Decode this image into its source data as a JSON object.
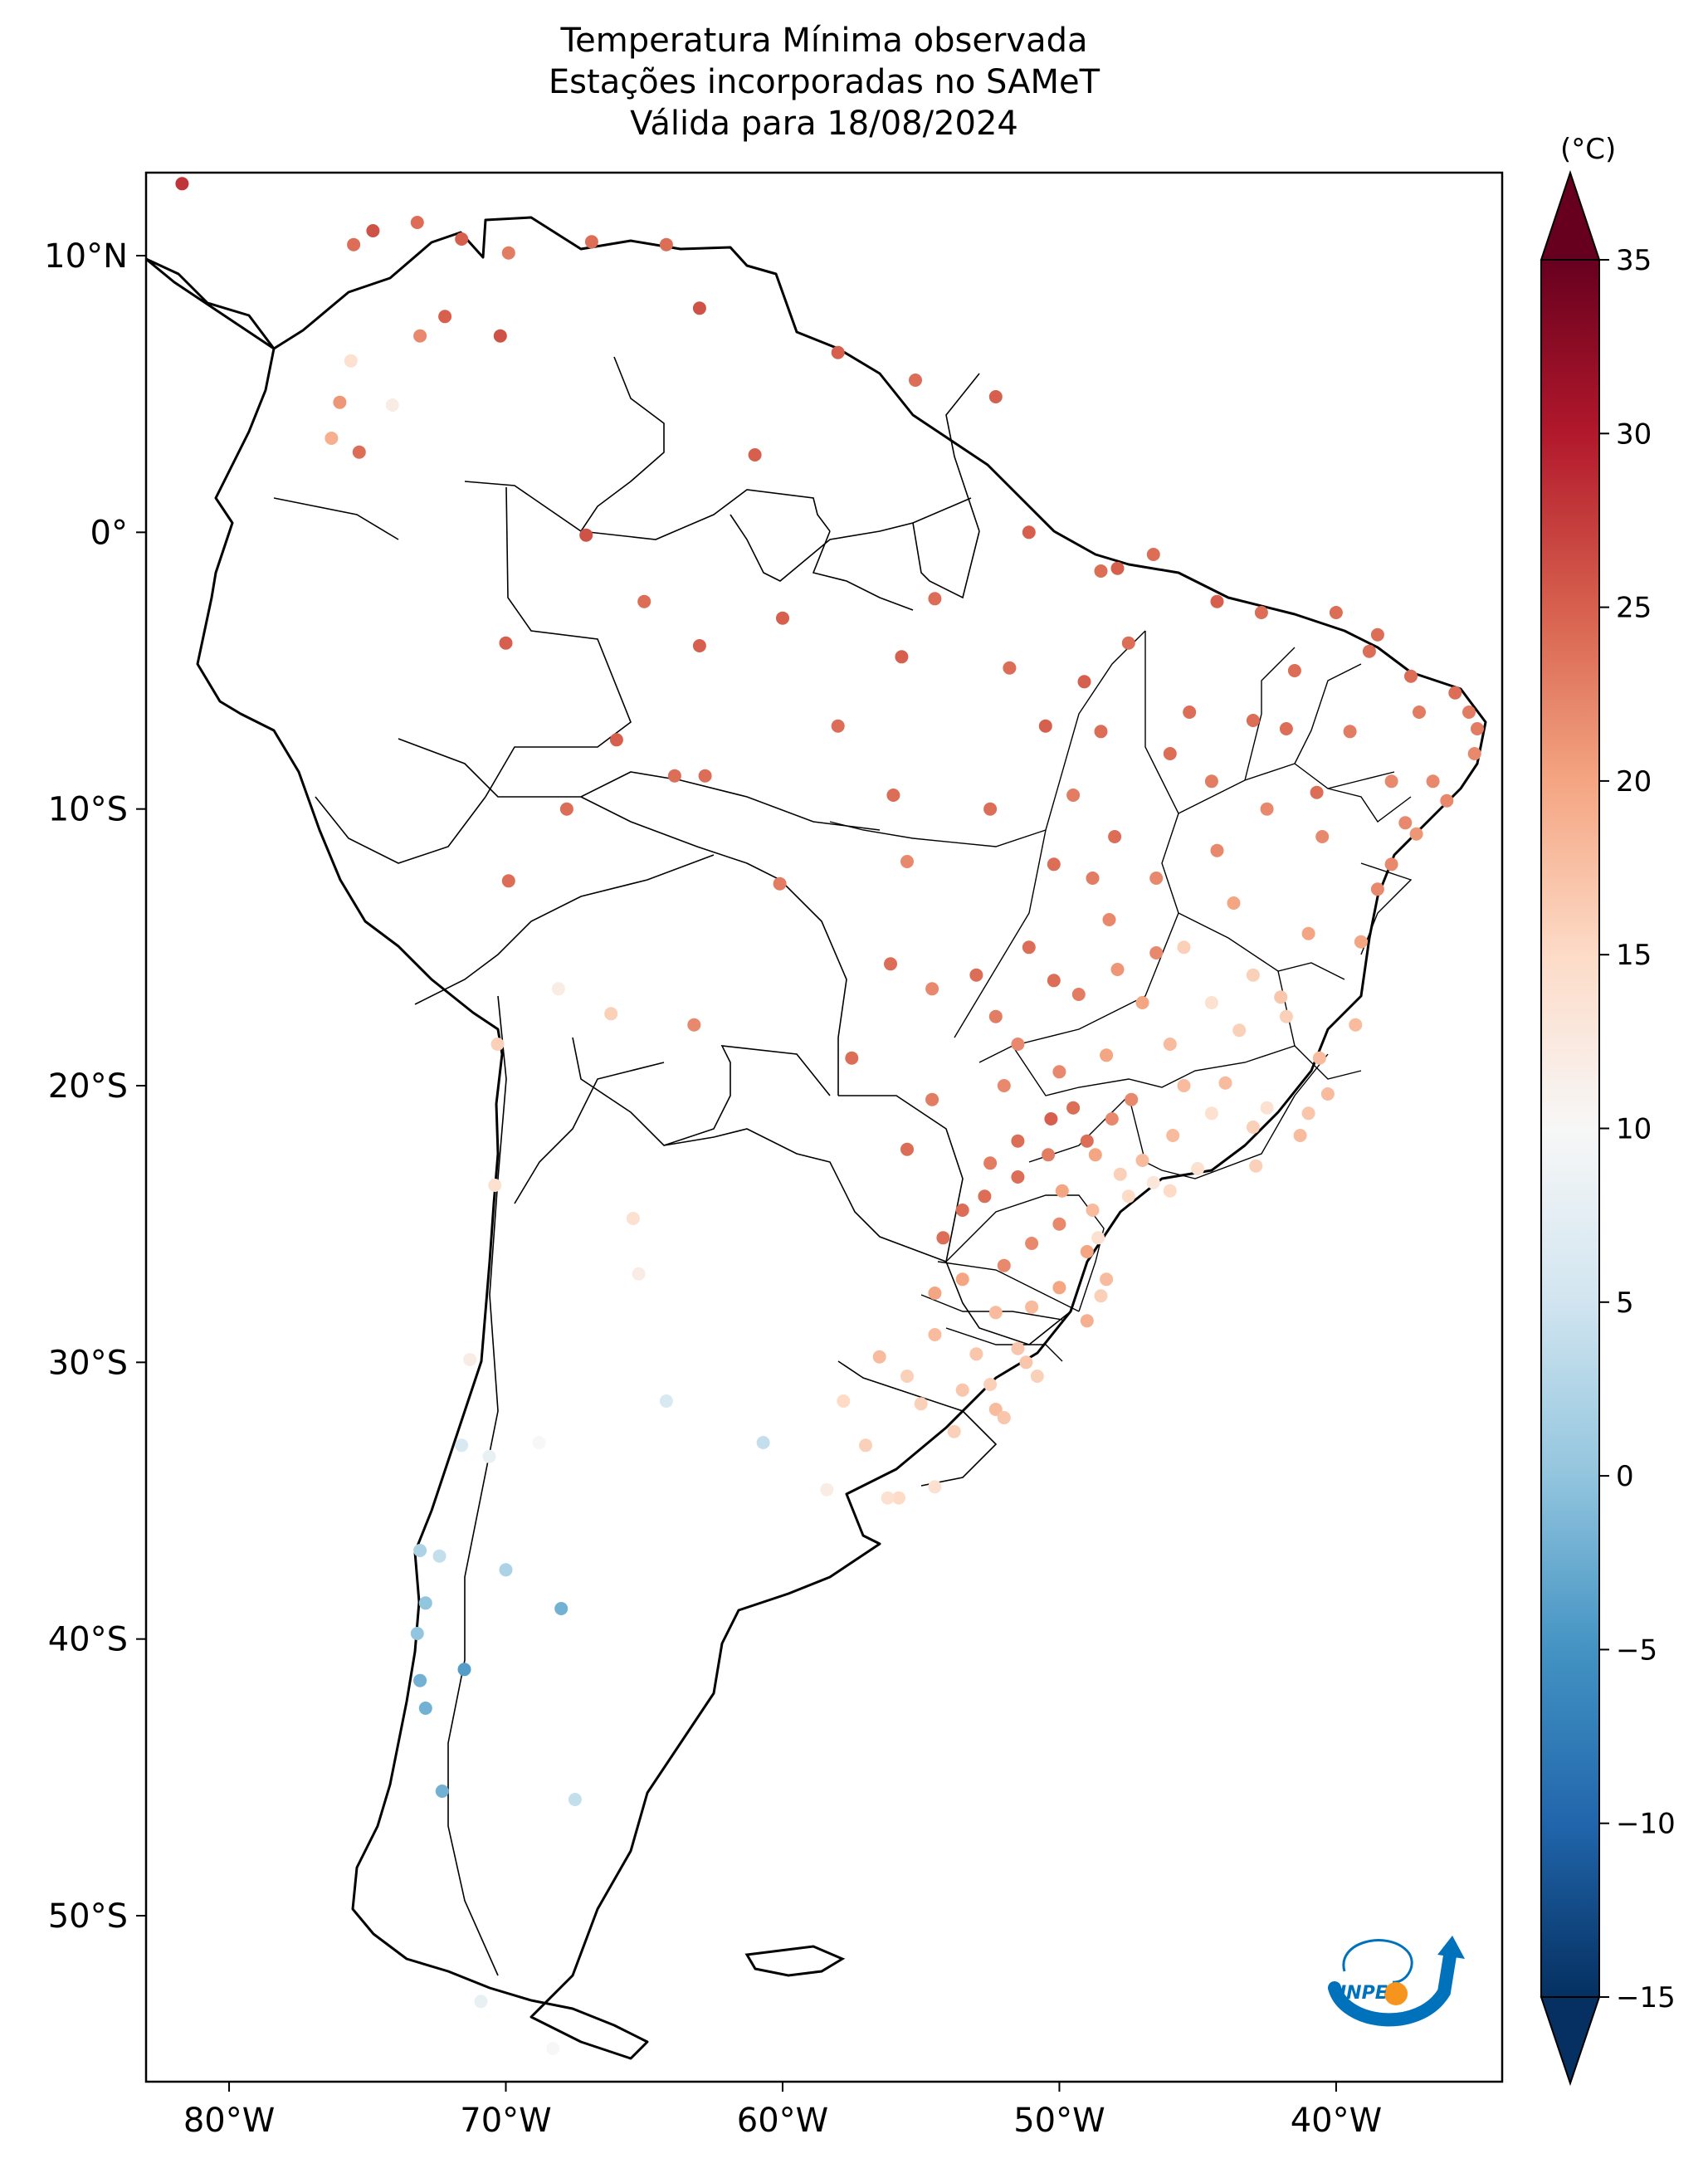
{
  "title": {
    "line1": "Temperatura Mínima observada",
    "line2": "Estações incorporadas no SAMeT",
    "line3": "Válida para 18/08/2024"
  },
  "map": {
    "lon_range": [
      -83,
      -34
    ],
    "lat_range": [
      -56,
      13
    ],
    "x_ticks": [
      {
        "value": -80,
        "label": "80°W"
      },
      {
        "value": -70,
        "label": "70°W"
      },
      {
        "value": -60,
        "label": "60°W"
      },
      {
        "value": -50,
        "label": "50°W"
      },
      {
        "value": -40,
        "label": "40°W"
      }
    ],
    "y_ticks": [
      {
        "value": 10,
        "label": "10°N"
      },
      {
        "value": 0,
        "label": "0°"
      },
      {
        "value": -10,
        "label": "10°S"
      },
      {
        "value": -20,
        "label": "20°S"
      },
      {
        "value": -30,
        "label": "30°S"
      },
      {
        "value": -40,
        "label": "40°S"
      },
      {
        "value": -50,
        "label": "50°S"
      }
    ]
  },
  "colorbar": {
    "unit": "(°C)",
    "min": -15,
    "max": 35,
    "extend": "both",
    "colormap": "RdBu_r",
    "ticks": [
      {
        "value": 35,
        "label": "35"
      },
      {
        "value": 30,
        "label": "30"
      },
      {
        "value": 25,
        "label": "25"
      },
      {
        "value": 20,
        "label": "20"
      },
      {
        "value": 15,
        "label": "15"
      },
      {
        "value": 10,
        "label": "10"
      },
      {
        "value": 5,
        "label": "5"
      },
      {
        "value": 0,
        "label": "0"
      },
      {
        "value": -5,
        "label": "−5"
      },
      {
        "value": -10,
        "label": "−10"
      },
      {
        "value": -15,
        "label": "−15"
      }
    ]
  },
  "logo": {
    "text": "INPE",
    "colors": {
      "blue": "#0072bc",
      "orange": "#f7941d"
    }
  },
  "stations": [
    [
      -81.7,
      12.6,
      28
    ],
    [
      -75.5,
      10.4,
      24
    ],
    [
      -74.8,
      10.9,
      26
    ],
    [
      -73.2,
      11.2,
      24
    ],
    [
      -71.6,
      10.6,
      25
    ],
    [
      -69.9,
      10.1,
      23
    ],
    [
      -66.9,
      10.5,
      24
    ],
    [
      -64.2,
      10.4,
      24
    ],
    [
      -63.0,
      8.1,
      26
    ],
    [
      -72.2,
      7.8,
      25
    ],
    [
      -70.2,
      7.1,
      26
    ],
    [
      -73.1,
      7.1,
      22
    ],
    [
      -75.6,
      6.2,
      14
    ],
    [
      -76.0,
      4.7,
      21
    ],
    [
      -74.1,
      4.6,
      12
    ],
    [
      -76.3,
      3.4,
      19
    ],
    [
      -75.3,
      2.9,
      24
    ],
    [
      -61.0,
      2.8,
      25
    ],
    [
      -58.0,
      6.5,
      25
    ],
    [
      -55.2,
      5.5,
      24
    ],
    [
      -52.3,
      4.9,
      25
    ],
    [
      -51.1,
      0.0,
      25
    ],
    [
      -48.5,
      -1.4,
      24
    ],
    [
      -47.9,
      -1.3,
      25
    ],
    [
      -46.6,
      -0.8,
      24
    ],
    [
      -44.3,
      -2.5,
      25
    ],
    [
      -42.7,
      -2.9,
      24
    ],
    [
      -40.0,
      -2.9,
      24
    ],
    [
      -38.5,
      -3.7,
      24
    ],
    [
      -37.3,
      -5.2,
      24
    ],
    [
      -35.7,
      -5.8,
      24
    ],
    [
      -35.2,
      -6.5,
      23
    ],
    [
      -34.9,
      -7.1,
      23
    ],
    [
      -35.0,
      -8.0,
      22
    ],
    [
      -36.0,
      -9.7,
      22
    ],
    [
      -37.1,
      -10.9,
      21
    ],
    [
      -38.5,
      -12.9,
      22
    ],
    [
      -39.1,
      -14.8,
      20
    ],
    [
      -39.3,
      -17.8,
      18
    ],
    [
      -40.3,
      -20.3,
      18
    ],
    [
      -41.3,
      -21.8,
      18
    ],
    [
      -42.9,
      -22.9,
      16
    ],
    [
      -45.0,
      -23.0,
      14
    ],
    [
      -46.6,
      -23.5,
      13
    ],
    [
      -48.6,
      -25.5,
      14
    ],
    [
      -48.5,
      -27.6,
      16
    ],
    [
      -51.2,
      -30.0,
      17
    ],
    [
      -52.3,
      -31.7,
      18
    ],
    [
      -55.8,
      -34.9,
      15
    ],
    [
      -56.2,
      -34.9,
      14
    ],
    [
      -58.4,
      -34.6,
      12
    ],
    [
      -60.7,
      -32.9,
      4
    ],
    [
      -64.2,
      -31.4,
      6
    ],
    [
      -65.4,
      -24.8,
      14
    ],
    [
      -65.2,
      -26.8,
      12
    ],
    [
      -68.8,
      -32.9,
      10
    ],
    [
      -70.6,
      -33.4,
      8
    ],
    [
      -71.6,
      -33.0,
      6
    ],
    [
      -72.4,
      -37.0,
      4
    ],
    [
      -73.1,
      -36.8,
      2
    ],
    [
      -72.9,
      -38.7,
      0
    ],
    [
      -73.2,
      -39.8,
      0
    ],
    [
      -73.1,
      -41.5,
      -2
    ],
    [
      -72.9,
      -42.5,
      -2
    ],
    [
      -72.3,
      -45.5,
      -2
    ],
    [
      -71.5,
      -41.1,
      -4
    ],
    [
      -68.0,
      -38.9,
      -2
    ],
    [
      -70.0,
      -37.5,
      2
    ],
    [
      -67.5,
      -45.8,
      4
    ],
    [
      -70.9,
      -53.1,
      8
    ],
    [
      -68.3,
      -54.8,
      10
    ],
    [
      -71.3,
      -29.9,
      12
    ],
    [
      -70.4,
      -23.6,
      14
    ],
    [
      -70.3,
      -18.5,
      16
    ],
    [
      -68.1,
      -16.5,
      12
    ],
    [
      -66.2,
      -17.4,
      16
    ],
    [
      -63.2,
      -17.8,
      22
    ],
    [
      -69.9,
      -12.6,
      24
    ],
    [
      -67.8,
      -10.0,
      24
    ],
    [
      -63.9,
      -8.8,
      24
    ],
    [
      -60.1,
      -12.7,
      23
    ],
    [
      -62.8,
      -8.8,
      24
    ],
    [
      -60.0,
      -3.1,
      25
    ],
    [
      -63.0,
      -4.1,
      25
    ],
    [
      -65.0,
      -2.5,
      24
    ],
    [
      -67.1,
      -0.1,
      26
    ],
    [
      -70.0,
      -4.0,
      25
    ],
    [
      -66.0,
      -7.5,
      25
    ],
    [
      -58.0,
      -7.0,
      24
    ],
    [
      -55.7,
      -4.5,
      25
    ],
    [
      -54.5,
      -2.4,
      24
    ],
    [
      -56.0,
      -9.5,
      24
    ],
    [
      -55.5,
      -11.9,
      22
    ],
    [
      -56.1,
      -15.6,
      24
    ],
    [
      -54.6,
      -16.5,
      22
    ],
    [
      -53.0,
      -16.0,
      24
    ],
    [
      -51.1,
      -15.0,
      24
    ],
    [
      -49.3,
      -16.7,
      23
    ],
    [
      -47.9,
      -15.8,
      21
    ],
    [
      -46.5,
      -15.2,
      22
    ],
    [
      -48.3,
      -18.9,
      20
    ],
    [
      -50.0,
      -19.5,
      22
    ],
    [
      -52.0,
      -20.0,
      22
    ],
    [
      -54.6,
      -20.5,
      23
    ],
    [
      -55.5,
      -22.3,
      24
    ],
    [
      -57.5,
      -19.0,
      24
    ],
    [
      -50.3,
      -21.2,
      25
    ],
    [
      -49.0,
      -22.0,
      24
    ],
    [
      -47.4,
      -20.5,
      22
    ],
    [
      -45.9,
      -21.8,
      18
    ],
    [
      -44.0,
      -19.9,
      18
    ],
    [
      -43.5,
      -18.0,
      16
    ],
    [
      -42.0,
      -16.8,
      17
    ],
    [
      -44.5,
      -17.0,
      14
    ],
    [
      -45.5,
      -15.0,
      16
    ],
    [
      -43.7,
      -13.4,
      20
    ],
    [
      -41.0,
      -14.5,
      20
    ],
    [
      -40.5,
      -11.0,
      22
    ],
    [
      -42.5,
      -10.0,
      22
    ],
    [
      -44.5,
      -9.0,
      23
    ],
    [
      -46.0,
      -8.0,
      24
    ],
    [
      -48.5,
      -7.2,
      24
    ],
    [
      -49.5,
      -9.5,
      23
    ],
    [
      -48.0,
      -11.0,
      24
    ],
    [
      -46.5,
      -12.5,
      22
    ],
    [
      -44.3,
      -11.5,
      22
    ],
    [
      -45.3,
      -6.5,
      24
    ],
    [
      -43.0,
      -6.8,
      24
    ],
    [
      -41.5,
      -5.0,
      24
    ],
    [
      -39.5,
      -7.2,
      23
    ],
    [
      -38.0,
      -9.0,
      22
    ],
    [
      -37.0,
      -6.5,
      23
    ],
    [
      -38.8,
      -4.3,
      24
    ],
    [
      -40.7,
      -9.4,
      24
    ],
    [
      -41.8,
      -7.1,
      24
    ],
    [
      -47.5,
      -4.0,
      24
    ],
    [
      -49.1,
      -5.4,
      25
    ],
    [
      -50.5,
      -7.0,
      25
    ],
    [
      -51.8,
      -4.9,
      24
    ],
    [
      -52.5,
      -10.0,
      24
    ],
    [
      -50.2,
      -12.0,
      24
    ],
    [
      -50.2,
      -16.2,
      24
    ],
    [
      -52.3,
      -17.5,
      23
    ],
    [
      -51.5,
      -18.5,
      22
    ],
    [
      -49.5,
      -20.8,
      24
    ],
    [
      -48.1,
      -21.2,
      22
    ],
    [
      -47.0,
      -22.7,
      18
    ],
    [
      -46.0,
      -23.8,
      15
    ],
    [
      -47.8,
      -23.2,
      16
    ],
    [
      -48.7,
      -22.5,
      20
    ],
    [
      -50.4,
      -22.5,
      23
    ],
    [
      -51.5,
      -22.0,
      24
    ],
    [
      -52.5,
      -22.8,
      23
    ],
    [
      -53.5,
      -24.5,
      24
    ],
    [
      -54.2,
      -25.5,
      24
    ],
    [
      -51.5,
      -23.3,
      24
    ],
    [
      -52.7,
      -24.0,
      24
    ],
    [
      -50.0,
      -25.0,
      22
    ],
    [
      -51.0,
      -25.7,
      22
    ],
    [
      -52.0,
      -26.5,
      22
    ],
    [
      -53.5,
      -27.0,
      20
    ],
    [
      -54.5,
      -27.5,
      20
    ],
    [
      -52.3,
      -28.2,
      18
    ],
    [
      -51.0,
      -28.0,
      18
    ],
    [
      -50.0,
      -27.3,
      20
    ],
    [
      -49.0,
      -28.5,
      19
    ],
    [
      -51.5,
      -29.5,
      17
    ],
    [
      -53.0,
      -29.7,
      17
    ],
    [
      -54.5,
      -29.0,
      18
    ],
    [
      -55.5,
      -30.5,
      16
    ],
    [
      -56.5,
      -29.8,
      18
    ],
    [
      -55.0,
      -31.5,
      16
    ],
    [
      -53.5,
      -31.0,
      17
    ],
    [
      -52.0,
      -32.0,
      17
    ],
    [
      -53.8,
      -32.5,
      16
    ],
    [
      -57.0,
      -33.0,
      16
    ],
    [
      -54.5,
      -34.5,
      14
    ],
    [
      -57.8,
      -31.4,
      15
    ],
    [
      -38.0,
      -12.0,
      22
    ],
    [
      -37.5,
      -10.5,
      22
    ],
    [
      -36.5,
      -9.0,
      22
    ],
    [
      -42.5,
      -20.8,
      14
    ],
    [
      -43.0,
      -21.5,
      16
    ],
    [
      -44.5,
      -21.0,
      14
    ],
    [
      -45.5,
      -20.0,
      18
    ],
    [
      -46.0,
      -18.5,
      18
    ],
    [
      -47.0,
      -17.0,
      20
    ],
    [
      -48.2,
      -14.0,
      22
    ],
    [
      -48.8,
      -12.5,
      23
    ],
    [
      -43.0,
      -16.0,
      16
    ],
    [
      -41.8,
      -17.5,
      16
    ],
    [
      -40.6,
      -19.0,
      18
    ],
    [
      -41.0,
      -21.0,
      17
    ],
    [
      -49.9,
      -23.8,
      20
    ],
    [
      -48.8,
      -24.5,
      18
    ],
    [
      -47.5,
      -24.0,
      15
    ],
    [
      -49.0,
      -26.0,
      20
    ],
    [
      -48.3,
      -27.0,
      18
    ],
    [
      -50.8,
      -30.5,
      16
    ],
    [
      -52.5,
      -30.8,
      16
    ]
  ]
}
